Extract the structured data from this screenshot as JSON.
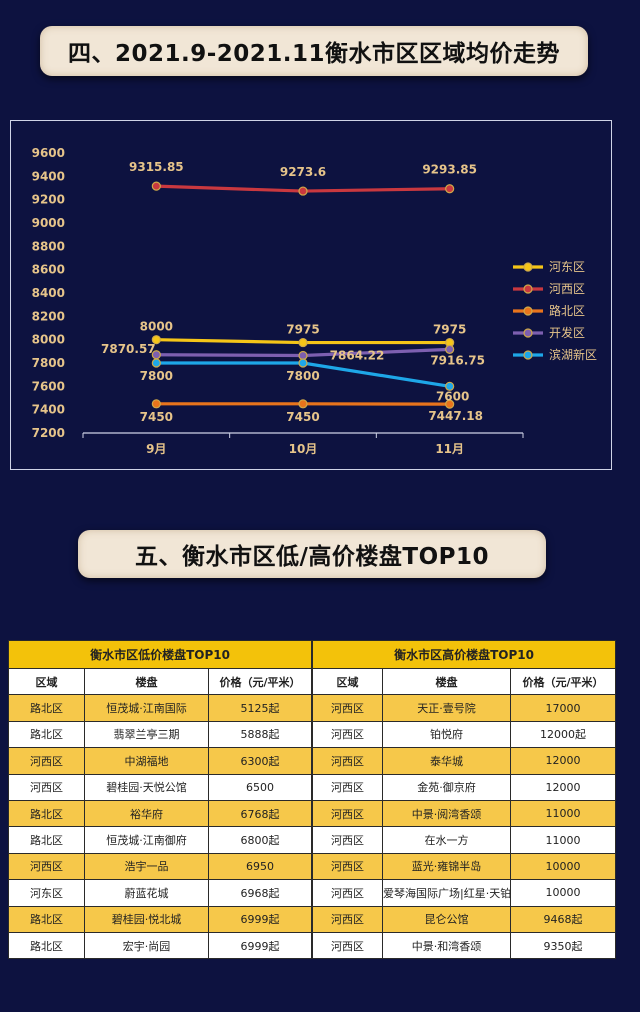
{
  "section4": {
    "title": "四、2021.9-2021.11衡水市区区域均价走势"
  },
  "section5": {
    "title": "五、衡水市区低/高价楼盘TOP10"
  },
  "chart_data": {
    "type": "line",
    "categories": [
      "9月",
      "10月",
      "11月"
    ],
    "ylim": [
      7200,
      9600
    ],
    "yticks": [
      7200,
      7400,
      7600,
      7800,
      8000,
      8200,
      8400,
      8600,
      8800,
      9000,
      9200,
      9400,
      9600
    ],
    "legend_position": "right",
    "series": [
      {
        "name": "河东区",
        "values": [
          8000,
          7975,
          7975
        ],
        "labels": [
          "8000",
          "7975",
          "7975"
        ],
        "color": "#f5c518"
      },
      {
        "name": "河西区",
        "values": [
          9315.85,
          9273.6,
          9293.85
        ],
        "labels": [
          "9315.85",
          "9273.6",
          "9293.85"
        ],
        "color": "#c9383f"
      },
      {
        "name": "路北区",
        "values": [
          7450,
          7450,
          7447.18
        ],
        "labels": [
          "7450",
          "7450",
          "7447.18"
        ],
        "color": "#e8741c"
      },
      {
        "name": "开发区",
        "values": [
          7870.57,
          7864.22,
          7916.75
        ],
        "labels": [
          "7870.57",
          "7864.22",
          "7916.75"
        ],
        "color": "#7d5fb0"
      },
      {
        "name": "滨湖新区",
        "values": [
          7800,
          7800,
          7600
        ],
        "labels": [
          "7800",
          "7800",
          "7600"
        ],
        "color": "#1ea7e8"
      }
    ]
  },
  "low_table": {
    "title": "衡水市区低价楼盘TOP10",
    "headers": [
      "区域",
      "楼盘",
      "价格（元/平米）"
    ],
    "rows": [
      [
        "路北区",
        "恒茂城·江南国际",
        "5125起"
      ],
      [
        "路北区",
        "翡翠兰亭三期",
        "5888起"
      ],
      [
        "河西区",
        "中湖福地",
        "6300起"
      ],
      [
        "河西区",
        "碧桂园·天悦公馆",
        "6500"
      ],
      [
        "路北区",
        "裕华府",
        "6768起"
      ],
      [
        "路北区",
        "恒茂城·江南御府",
        "6800起"
      ],
      [
        "河西区",
        "浩宇一品",
        "6950"
      ],
      [
        "河东区",
        "蔚蓝花城",
        "6968起"
      ],
      [
        "路北区",
        "碧桂园·悦北城",
        "6999起"
      ],
      [
        "路北区",
        "宏宇·尚园",
        "6999起"
      ]
    ]
  },
  "high_table": {
    "title": "衡水市区高价楼盘TOP10",
    "headers": [
      "区域",
      "楼盘",
      "价格（元/平米）"
    ],
    "rows": [
      [
        "河西区",
        "天正·壹号院",
        "17000"
      ],
      [
        "河西区",
        "铂悦府",
        "12000起"
      ],
      [
        "河西区",
        "泰华城",
        "12000"
      ],
      [
        "河西区",
        "金苑·御京府",
        "12000"
      ],
      [
        "河西区",
        "中景·阅湾香颂",
        "11000"
      ],
      [
        "河西区",
        "在水一方",
        "11000"
      ],
      [
        "河西区",
        "蓝光·雍锦半岛",
        "10000"
      ],
      [
        "河西区",
        "爱琴海国际广场|红星·天铂",
        "10000"
      ],
      [
        "河西区",
        "昆仑公馆",
        "9468起"
      ],
      [
        "河西区",
        "中景·和湾香颂",
        "9350起"
      ]
    ]
  }
}
